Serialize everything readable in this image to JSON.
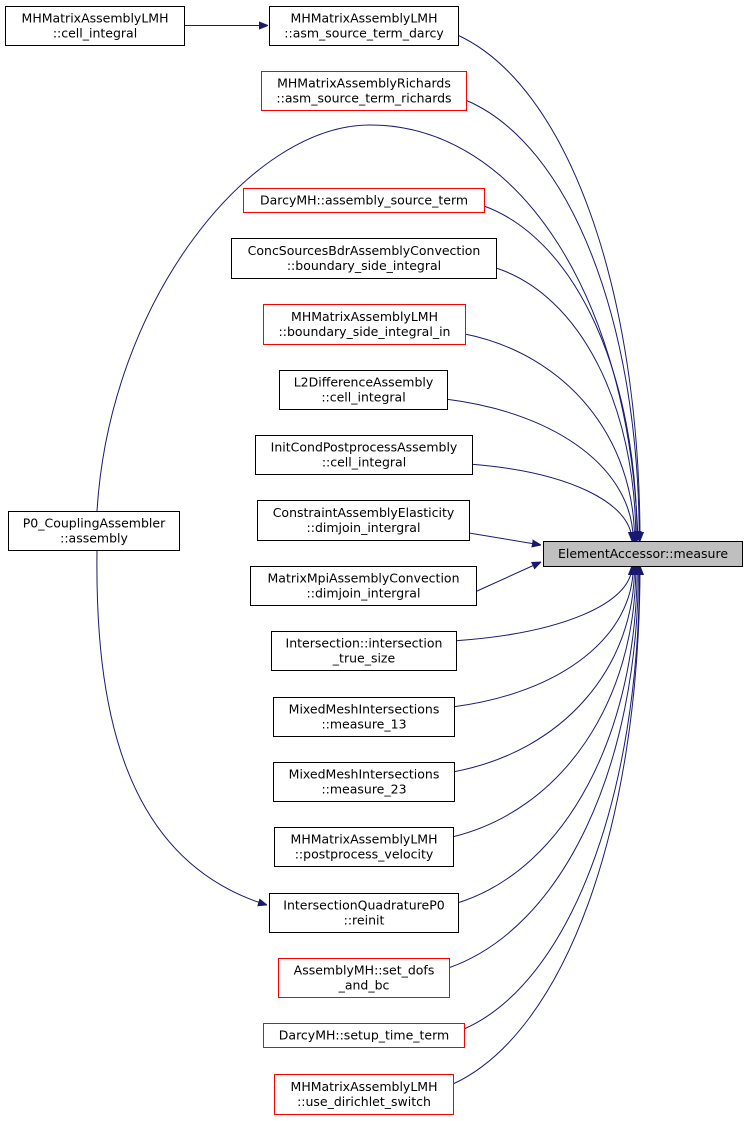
{
  "colors": {
    "edge": "#191970",
    "border_normal": "#000000",
    "border_red": "#ff0000",
    "target_fill": "#bfbfbf"
  },
  "nodes": [
    {
      "id": "cell_integral_lmh",
      "lines": [
        "MHMatrixAssemblyLMH",
        "::cell_integral"
      ],
      "border": "#000000"
    },
    {
      "id": "asm_source_term_darcy",
      "lines": [
        "MHMatrixAssemblyLMH",
        "::asm_source_term_darcy"
      ],
      "border": "#000000"
    },
    {
      "id": "asm_source_term_richards",
      "lines": [
        "MHMatrixAssemblyRichards",
        "::asm_source_term_richards"
      ],
      "border": "#ff0000"
    },
    {
      "id": "assembly_source_term",
      "lines": [
        "DarcyMH::assembly_source_term"
      ],
      "border": "#ff0000"
    },
    {
      "id": "boundary_side_integral",
      "lines": [
        "ConcSourcesBdrAssemblyConvection",
        "::boundary_side_integral"
      ],
      "border": "#000000"
    },
    {
      "id": "boundary_side_integral_in",
      "lines": [
        "MHMatrixAssemblyLMH",
        "::boundary_side_integral_in"
      ],
      "border": "#ff0000"
    },
    {
      "id": "l2diff_cell_integral",
      "lines": [
        "L2DifferenceAssembly",
        "::cell_integral"
      ],
      "border": "#000000"
    },
    {
      "id": "initcond_cell_integral",
      "lines": [
        "InitCondPostprocessAssembly",
        "::cell_integral"
      ],
      "border": "#000000"
    },
    {
      "id": "constraint_dimjoin",
      "lines": [
        "ConstraintAssemblyElasticity",
        "::dimjoin_intergral"
      ],
      "border": "#000000"
    },
    {
      "id": "matrixmpi_dimjoin",
      "lines": [
        "MatrixMpiAssemblyConvection",
        "::dimjoin_intergral"
      ],
      "border": "#000000"
    },
    {
      "id": "intersection_true_size",
      "lines": [
        "Intersection::intersection",
        "_true_size"
      ],
      "border": "#000000"
    },
    {
      "id": "measure_13",
      "lines": [
        "MixedMeshIntersections",
        "::measure_13"
      ],
      "border": "#000000"
    },
    {
      "id": "measure_23",
      "lines": [
        "MixedMeshIntersections",
        "::measure_23"
      ],
      "border": "#000000"
    },
    {
      "id": "postprocess_velocity",
      "lines": [
        "MHMatrixAssemblyLMH",
        "::postprocess_velocity"
      ],
      "border": "#000000"
    },
    {
      "id": "reinit",
      "lines": [
        "IntersectionQuadratureP0",
        "::reinit"
      ],
      "border": "#000000"
    },
    {
      "id": "set_dofs_and_bc",
      "lines": [
        "AssemblyMH::set_dofs",
        "_and_bc"
      ],
      "border": "#ff0000"
    },
    {
      "id": "setup_time_term",
      "lines": [
        "DarcyMH::setup_time_term"
      ],
      "border": "#ff0000"
    },
    {
      "id": "use_dirichlet_switch",
      "lines": [
        "MHMatrixAssemblyLMH",
        "::use_dirichlet_switch"
      ],
      "border": "#ff0000"
    },
    {
      "id": "p0_assembly",
      "lines": [
        "P0_CouplingAssembler",
        "::assembly"
      ],
      "border": "#000000"
    },
    {
      "id": "measure",
      "lines": [
        "ElementAccessor::measure"
      ],
      "border": "#000000",
      "highlighted": true
    }
  ],
  "edges": [
    [
      "cell_integral_lmh",
      "asm_source_term_darcy"
    ],
    [
      "asm_source_term_darcy",
      "measure"
    ],
    [
      "asm_source_term_richards",
      "measure"
    ],
    [
      "p0_assembly",
      "measure"
    ],
    [
      "assembly_source_term",
      "measure"
    ],
    [
      "boundary_side_integral",
      "measure"
    ],
    [
      "boundary_side_integral_in",
      "measure"
    ],
    [
      "l2diff_cell_integral",
      "measure"
    ],
    [
      "initcond_cell_integral",
      "measure"
    ],
    [
      "constraint_dimjoin",
      "measure"
    ],
    [
      "matrixmpi_dimjoin",
      "measure"
    ],
    [
      "intersection_true_size",
      "measure"
    ],
    [
      "measure_13",
      "measure"
    ],
    [
      "measure_23",
      "measure"
    ],
    [
      "postprocess_velocity",
      "measure"
    ],
    [
      "reinit",
      "measure"
    ],
    [
      "set_dofs_and_bc",
      "measure"
    ],
    [
      "setup_time_term",
      "measure"
    ],
    [
      "use_dirichlet_switch",
      "measure"
    ],
    [
      "p0_assembly",
      "reinit"
    ]
  ]
}
